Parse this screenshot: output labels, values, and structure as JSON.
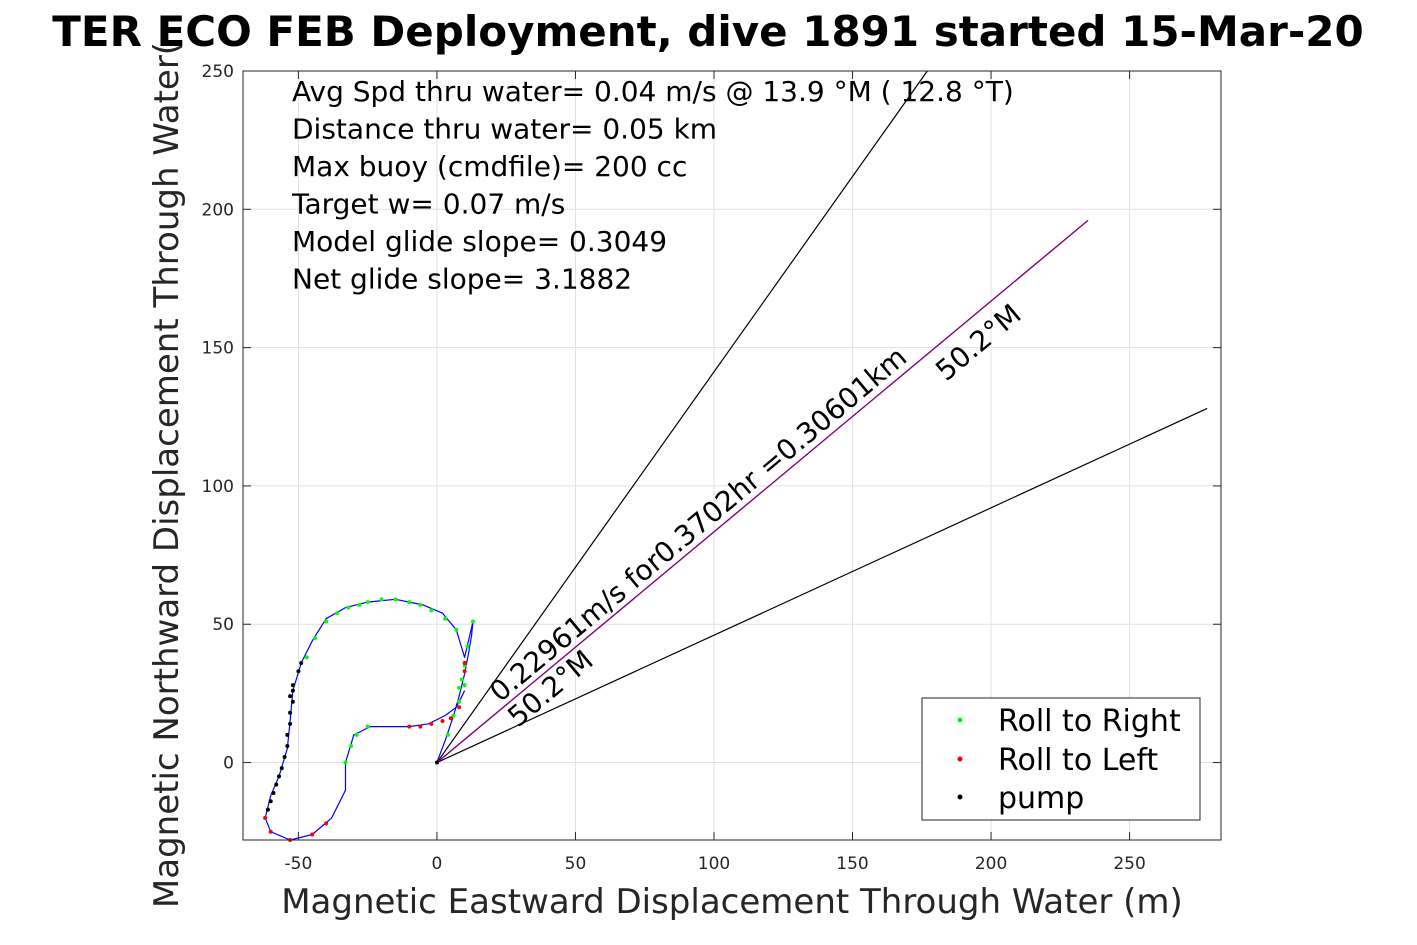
{
  "chart_data": {
    "type": "line",
    "title": "TER ECO FEB Deployment, dive 1891 started 15-Mar-20",
    "xlabel": "Magnetic Eastward Displacement Through Water (m)",
    "ylabel": "Magnetic Northward Displacement Through Water(",
    "xlim": [
      -70,
      283
    ],
    "ylim": [
      -28,
      250
    ],
    "xticks": [
      -50,
      0,
      50,
      100,
      150,
      200,
      250
    ],
    "yticks": [
      0,
      50,
      100,
      150,
      200,
      250
    ],
    "grid": true,
    "stats": [
      "Avg Spd thru water=  0.04 m/s @  13.9 °M ( 12.8 °T)",
      "Distance thru water=  0.05 km",
      "Max buoy (cmdfile)= 200 cc",
      "Target w= 0.07 m/s",
      "Model glide slope= 0.3049",
      "Net glide slope= 3.1882"
    ],
    "track": {
      "color": "#0000ff",
      "points": [
        [
          0,
          0
        ],
        [
          3,
          8
        ],
        [
          6,
          17
        ],
        [
          8,
          24
        ],
        [
          10,
          32
        ],
        [
          11.5,
          40
        ],
        [
          12.5,
          46
        ],
        [
          13,
          51
        ],
        [
          10,
          38
        ],
        [
          7,
          48
        ],
        [
          2,
          54
        ],
        [
          -5,
          57
        ],
        [
          -15,
          59
        ],
        [
          -25,
          58
        ],
        [
          -33,
          56
        ],
        [
          -40,
          52
        ],
        [
          -45,
          44
        ],
        [
          -49,
          36
        ],
        [
          -52,
          26
        ],
        [
          -53,
          15
        ],
        [
          -54,
          5
        ],
        [
          -57,
          -5
        ],
        [
          -60,
          -12
        ],
        [
          -62,
          -20
        ],
        [
          -60,
          -25
        ],
        [
          -53,
          -28
        ],
        [
          -45,
          -26
        ],
        [
          -38,
          -20
        ],
        [
          -33,
          -10
        ],
        [
          -33,
          0
        ],
        [
          -30,
          10
        ],
        [
          -24,
          13
        ],
        [
          -18,
          13
        ],
        [
          -10,
          13
        ],
        [
          -3,
          14
        ],
        [
          3,
          17
        ],
        [
          7,
          20
        ],
        [
          9,
          24
        ],
        [
          10,
          26
        ]
      ]
    },
    "series": [
      {
        "name": "Roll to Right",
        "color": "#00ff00",
        "points": [
          [
            13,
            51
          ],
          [
            11,
            42
          ],
          [
            10,
            35
          ],
          [
            9,
            30
          ],
          [
            8,
            27
          ],
          [
            6,
            17
          ],
          [
            4,
            10
          ],
          [
            7,
            48
          ],
          [
            3,
            52
          ],
          [
            -2,
            55
          ],
          [
            -6,
            57
          ],
          [
            -10,
            58
          ],
          [
            -15,
            59
          ],
          [
            -20,
            59
          ],
          [
            -25,
            58
          ],
          [
            -28,
            57
          ],
          [
            -32,
            56
          ],
          [
            -36,
            54
          ],
          [
            -40,
            51
          ],
          [
            -44,
            45
          ],
          [
            -47,
            38
          ],
          [
            -33,
            0
          ],
          [
            -31,
            6
          ],
          [
            -29,
            10
          ],
          [
            -25,
            13
          ],
          [
            8,
            22
          ],
          [
            10,
            28
          ]
        ]
      },
      {
        "name": "Roll to Left",
        "color": "#ff0000",
        "points": [
          [
            10,
            33
          ],
          [
            10,
            36
          ],
          [
            8,
            20
          ],
          [
            5,
            16
          ],
          [
            2,
            15
          ],
          [
            -2,
            14
          ],
          [
            -6,
            13
          ],
          [
            -10,
            13
          ],
          [
            -53,
            -28
          ],
          [
            -45,
            -26
          ],
          [
            -40,
            -22
          ],
          [
            -62,
            -20
          ],
          [
            -60,
            -25
          ]
        ]
      },
      {
        "name": "pump",
        "color": "#000000",
        "points": [
          [
            -52,
            26
          ],
          [
            -52,
            22
          ],
          [
            -53,
            18
          ],
          [
            -53,
            14
          ],
          [
            -54,
            10
          ],
          [
            -54,
            6
          ],
          [
            -55,
            2
          ],
          [
            -56,
            -2
          ],
          [
            -57,
            -5
          ],
          [
            -58,
            -8
          ],
          [
            -59,
            -11
          ],
          [
            -60,
            -14
          ],
          [
            -61,
            -17
          ],
          [
            -50,
            33
          ],
          [
            -49,
            36
          ],
          [
            -52,
            28
          ],
          [
            -53,
            24
          ],
          [
            0,
            0
          ]
        ]
      }
    ],
    "current_line": {
      "color": "#800080",
      "x": [
        0,
        235
      ],
      "y": [
        0,
        196
      ]
    },
    "wedge_lines": [
      {
        "color": "#000000",
        "x": [
          0,
          177
        ],
        "y": [
          0,
          250
        ]
      },
      {
        "color": "#000000",
        "x": [
          0,
          278
        ],
        "y": [
          0,
          128
        ]
      }
    ],
    "annotations": [
      "0.22961m/s for0.3702hr =0.30601km",
      "50.2°M",
      "50.2°M"
    ],
    "legend": {
      "placement": "bottom-right",
      "entries": [
        "Roll to Right",
        "Roll to Left",
        "pump"
      ]
    }
  }
}
